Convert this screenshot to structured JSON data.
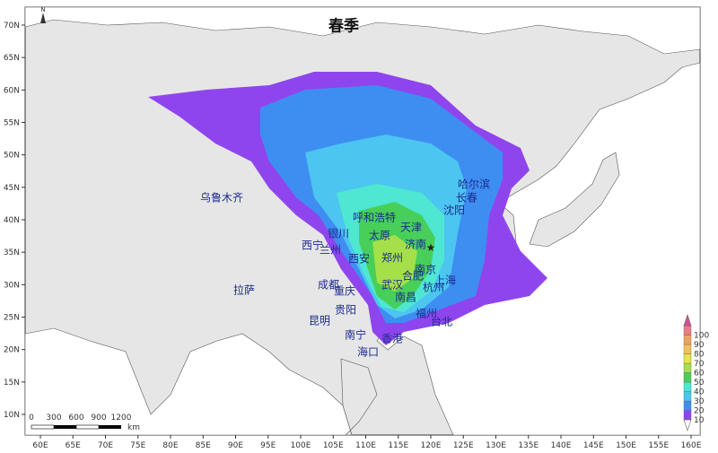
{
  "title": "春季",
  "north_label": "N",
  "scale_bar": {
    "ticks": [
      "0",
      "300",
      "600",
      "900",
      "1200"
    ],
    "unit": "km"
  },
  "x_axis_labels": [
    "60E",
    "65E",
    "70E",
    "75E",
    "80E",
    "85E",
    "90E",
    "95E",
    "100E",
    "105E",
    "110E",
    "115E",
    "120E",
    "125E",
    "130E",
    "135E",
    "140E",
    "145E",
    "150E",
    "155E",
    "160E"
  ],
  "y_axis_labels": [
    "10N",
    "15N",
    "20N",
    "25N",
    "30N",
    "35N",
    "40N",
    "45N",
    "50N",
    "55N",
    "60N",
    "65N",
    "70N"
  ],
  "legend": {
    "labels": [
      "10",
      "20",
      "30",
      "40",
      "50",
      "60",
      "70",
      "80",
      "90",
      "100"
    ],
    "colors": [
      "#8f45ee",
      "#3e8ef2",
      "#4cc5f0",
      "#4fe7d2",
      "#48cf5a",
      "#a5e04a",
      "#e6e552",
      "#f2c15a",
      "#f2a15e",
      "#ee7a86"
    ],
    "over_color": "#d24f9c",
    "under_color": "#ffffff"
  },
  "cities": [
    "乌鲁木齐",
    "拉萨",
    "西宁",
    "兰州",
    "银川",
    "呼和浩特",
    "天津",
    "太原",
    "济南",
    "西安",
    "郑州",
    "合肥",
    "南京",
    "上海",
    "杭州",
    "武汉",
    "南昌",
    "成都",
    "重庆",
    "贵阳",
    "昆明",
    "南宁",
    "香港",
    "海口",
    "福州",
    "台北",
    "哈尔滨",
    "长春",
    "沈阳"
  ],
  "source_marker": "star-icon",
  "colors": {
    "land": "#e6e6e6",
    "ocean": "#ffffff",
    "label": "#1c2a8c"
  }
}
